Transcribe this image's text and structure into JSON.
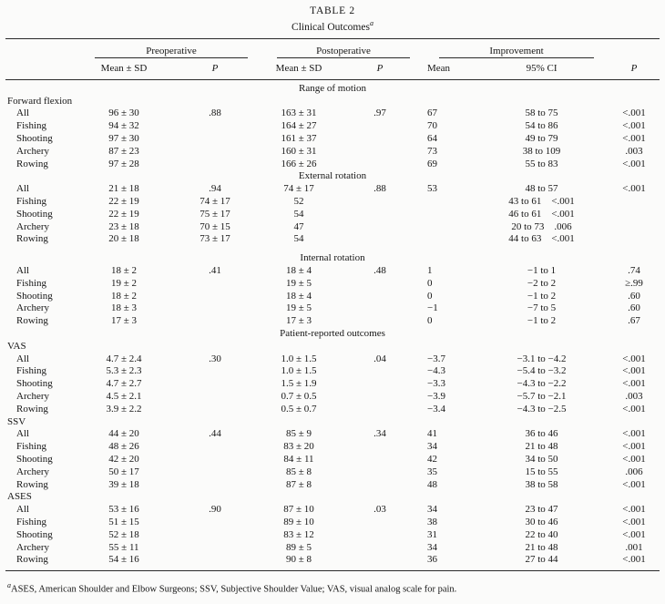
{
  "title": {
    "line1": "TABLE 2",
    "line2": "Clinical Outcomes",
    "sup": "a"
  },
  "header": {
    "groups": [
      {
        "label": "Preoperative"
      },
      {
        "label": "Postoperative"
      },
      {
        "label": "Improvement"
      }
    ],
    "cols": [
      "Mean ± SD",
      "P",
      "Mean ± SD",
      "P",
      "Mean",
      "95% CI",
      "P"
    ]
  },
  "table": {
    "rows": [
      {
        "type": "section",
        "label": "Range of motion"
      },
      {
        "type": "group",
        "label": "Forward flexion"
      },
      {
        "type": "data",
        "cells": [
          "All",
          "96 ± 30",
          ".88",
          "163 ± 31",
          ".97",
          "67",
          "58 to 75",
          "<.001"
        ]
      },
      {
        "type": "data",
        "cells": [
          "Fishing",
          "94 ± 32",
          "",
          "164 ± 27",
          "",
          "70",
          "54 to 86",
          "<.001"
        ]
      },
      {
        "type": "data",
        "cells": [
          "Shooting",
          "97 ± 30",
          "",
          "161 ± 37",
          "",
          "64",
          "49 to 79",
          "<.001"
        ]
      },
      {
        "type": "data",
        "cells": [
          "Archery",
          "87 ± 23",
          "",
          "160 ± 31",
          "",
          "73",
          "38 to 109",
          ".003"
        ]
      },
      {
        "type": "data",
        "cells": [
          "Rowing",
          "97 ± 28",
          "",
          "166 ± 26",
          "",
          "69",
          "55 to 83",
          "<.001"
        ]
      },
      {
        "type": "section",
        "label": "External rotation"
      },
      {
        "type": "data",
        "cells": [
          "All",
          "21 ± 18",
          ".94",
          "74 ± 17",
          ".88",
          "53",
          "48 to 57",
          "<.001"
        ]
      },
      {
        "type": "data",
        "cells": [
          "Fishing",
          "22 ± 19",
          "74 ± 17",
          "52",
          "",
          "",
          "43 to 61",
          "<.001"
        ],
        "p_in_ci": true
      },
      {
        "type": "data",
        "cells": [
          "Shooting",
          "22 ± 19",
          "75 ± 17",
          "54",
          "",
          "",
          "46 to 61",
          "<.001"
        ],
        "p_in_ci": true
      },
      {
        "type": "data",
        "cells": [
          "Archery",
          "23 ± 18",
          "70 ± 15",
          "47",
          "",
          "",
          "20 to 73",
          ".006"
        ],
        "p_in_ci": true
      },
      {
        "type": "data",
        "cells": [
          "Rowing",
          "20 ± 18",
          "73 ± 17",
          "54",
          "",
          "",
          "44 to 63",
          "<.001"
        ],
        "p_in_ci": true
      },
      {
        "type": "section",
        "label": "Internal rotation",
        "gap": true
      },
      {
        "type": "data",
        "cells": [
          "All",
          "18 ± 2",
          ".41",
          "18 ± 4",
          ".48",
          "1",
          "−1 to 1",
          ".74"
        ]
      },
      {
        "type": "data",
        "cells": [
          "Fishing",
          "19 ± 2",
          "",
          "19 ± 5",
          "",
          "0",
          "−2 to 2",
          "≥.99"
        ]
      },
      {
        "type": "data",
        "cells": [
          "Shooting",
          "18 ± 2",
          "",
          "18 ± 4",
          "",
          "0",
          "−1 to 2",
          ".60"
        ]
      },
      {
        "type": "data",
        "cells": [
          "Archery",
          "18 ± 3",
          "",
          "19 ± 5",
          "",
          "−1",
          "−7 to 5",
          ".60"
        ]
      },
      {
        "type": "data",
        "cells": [
          "Rowing",
          "17 ± 3",
          "",
          "17 ± 3",
          "",
          "0",
          "−1 to 2",
          ".67"
        ]
      },
      {
        "type": "section",
        "label": "Patient-reported outcomes"
      },
      {
        "type": "group",
        "label": "VAS"
      },
      {
        "type": "data",
        "cells": [
          "All",
          "4.7 ± 2.4",
          ".30",
          "1.0 ± 1.5",
          ".04",
          "−3.7",
          "−3.1 to −4.2",
          "<.001"
        ]
      },
      {
        "type": "data",
        "cells": [
          "Fishing",
          "5.3 ± 2.3",
          "",
          "1.0 ± 1.5",
          "",
          "−4.3",
          "−5.4 to −3.2",
          "<.001"
        ]
      },
      {
        "type": "data",
        "cells": [
          "Shooting",
          "4.7 ± 2.7",
          "",
          "1.5 ± 1.9",
          "",
          "−3.3",
          "−4.3 to −2.2",
          "<.001"
        ]
      },
      {
        "type": "data",
        "cells": [
          "Archery",
          "4.5 ± 2.1",
          "",
          "0.7 ± 0.5",
          "",
          "−3.9",
          "−5.7 to −2.1",
          ".003"
        ]
      },
      {
        "type": "data",
        "cells": [
          "Rowing",
          "3.9 ± 2.2",
          "",
          "0.5 ± 0.7",
          "",
          "−3.4",
          "−4.3 to −2.5",
          "<.001"
        ]
      },
      {
        "type": "group",
        "label": "SSV"
      },
      {
        "type": "data",
        "cells": [
          "All",
          "44 ± 20",
          ".44",
          "85 ± 9",
          ".34",
          "41",
          "36 to 46",
          "<.001"
        ]
      },
      {
        "type": "data",
        "cells": [
          "Fishing",
          "48 ± 26",
          "",
          "83 ± 20",
          "",
          "34",
          "21 to 48",
          "<.001"
        ]
      },
      {
        "type": "data",
        "cells": [
          "Shooting",
          "42 ± 20",
          "",
          "84 ± 11",
          "",
          "42",
          "34 to 50",
          "<.001"
        ]
      },
      {
        "type": "data",
        "cells": [
          "Archery",
          "50 ± 17",
          "",
          "85 ± 8",
          "",
          "35",
          "15 to 55",
          ".006"
        ]
      },
      {
        "type": "data",
        "cells": [
          "Rowing",
          "39 ± 18",
          "",
          "87 ± 8",
          "",
          "48",
          "38 to 58",
          "<.001"
        ]
      },
      {
        "type": "group",
        "label": "ASES"
      },
      {
        "type": "data",
        "cells": [
          "All",
          "53 ± 16",
          ".90",
          "87 ± 10",
          ".03",
          "34",
          "23 to 47",
          "<.001"
        ]
      },
      {
        "type": "data",
        "cells": [
          "Fishing",
          "51 ± 15",
          "",
          "89 ± 10",
          "",
          "38",
          "30 to 46",
          "<.001"
        ]
      },
      {
        "type": "data",
        "cells": [
          "Shooting",
          "52 ± 18",
          "",
          "83 ± 12",
          "",
          "31",
          "22 to 40",
          "<.001"
        ]
      },
      {
        "type": "data",
        "cells": [
          "Archery",
          "55 ± 11",
          "",
          "89 ± 5",
          "",
          "34",
          "21 to 48",
          ".001"
        ]
      },
      {
        "type": "data",
        "cells": [
          "Rowing",
          "54 ± 16",
          "",
          "90 ± 8",
          "",
          "36",
          "27 to 44",
          "<.001"
        ]
      }
    ]
  },
  "footnote": {
    "sup": "a",
    "text": "ASES, American Shoulder and Elbow Surgeons; SSV, Subjective Shoulder Value; VAS, visual analog scale for pain."
  }
}
